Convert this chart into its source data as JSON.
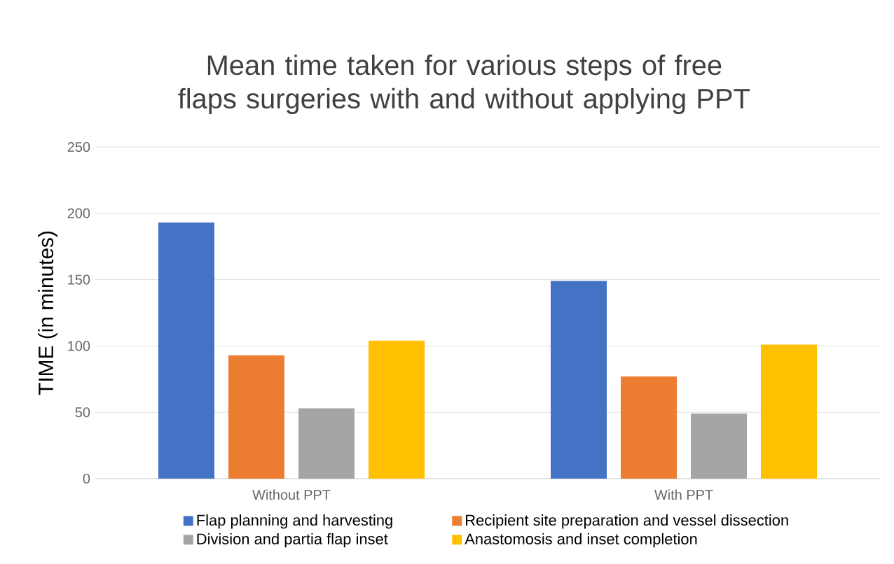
{
  "chart_data": {
    "type": "bar",
    "title": "Mean time taken for various steps of free flaps surgeries with and without applying PPT",
    "ylabel": "TIME (in minutes)",
    "categories": [
      "Without PPT",
      "With PPT"
    ],
    "series": [
      {
        "name": "Flap planning and harvesting",
        "color": "#4472c4",
        "values": [
          193,
          149
        ]
      },
      {
        "name": "Recipient site preparation and vessel dissection",
        "color": "#ed7d31",
        "values": [
          93,
          77
        ]
      },
      {
        "name": "Division and partia flap inset",
        "color": "#a5a5a5",
        "values": [
          53,
          49
        ]
      },
      {
        "name": "Anastomosis and inset completion",
        "color": "#ffc000",
        "values": [
          104,
          101
        ]
      }
    ],
    "ylim": [
      0,
      250
    ],
    "yticks": [
      0,
      50,
      100,
      150,
      200,
      250
    ],
    "grid": "y",
    "legend": "bottom"
  }
}
